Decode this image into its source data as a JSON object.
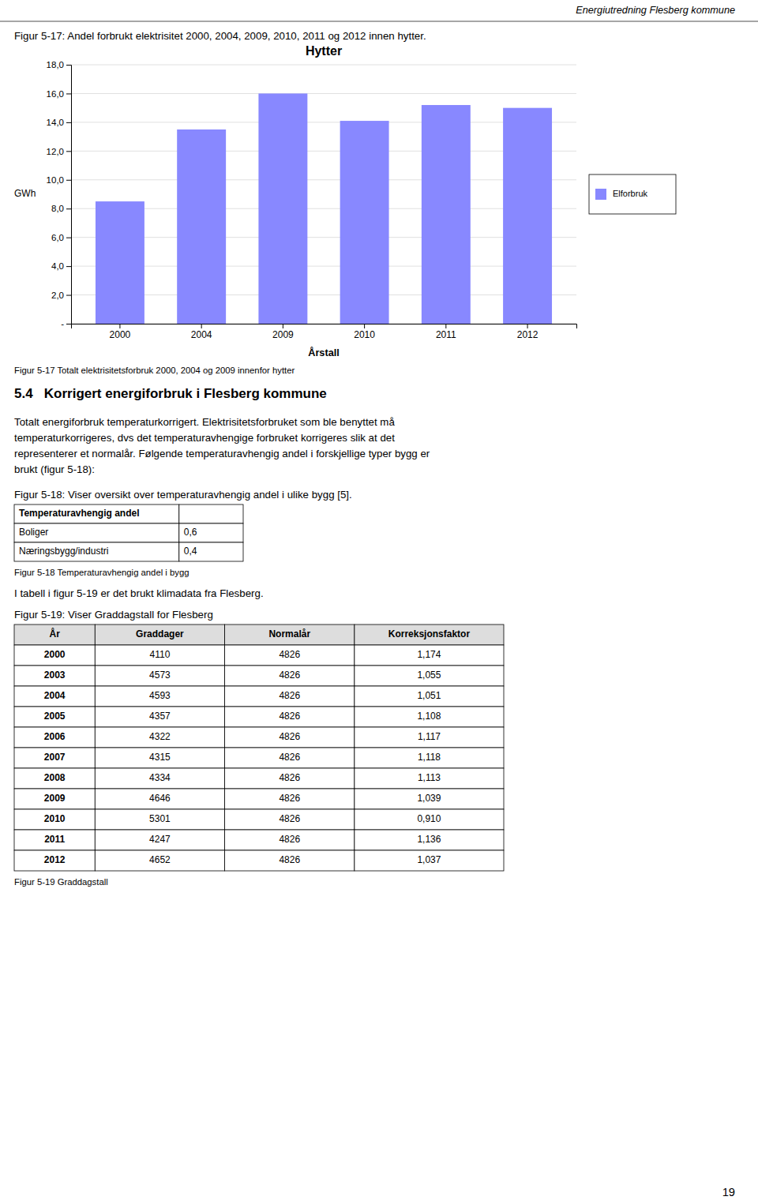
{
  "page_header": "Energiutredning Flesberg kommune",
  "page_number": "19",
  "fig517_title": "Figur 5-17: Andel forbrukt elektrisitet 2000, 2004, 2009, 2010, 2011 og 2012 innen hytter.",
  "chart_data": {
    "type": "bar",
    "title": "Hytter",
    "x_label": "Årstall",
    "y_label": "GWh",
    "categories": [
      "2000",
      "2004",
      "2009",
      "2010",
      "2011",
      "2012"
    ],
    "series": [
      {
        "name": "Elforbruk",
        "color": "#8888FF",
        "values": [
          8.5,
          13.5,
          16.0,
          14.1,
          15.2,
          15.0
        ]
      }
    ],
    "ylim": [
      0,
      18.0
    ],
    "yticks": [
      {
        "value": 0,
        "label": "-"
      },
      {
        "value": 2,
        "label": "2,0"
      },
      {
        "value": 4,
        "label": "4,0"
      },
      {
        "value": 6,
        "label": "6,0"
      },
      {
        "value": 8,
        "label": "8,0"
      },
      {
        "value": 10,
        "label": "10,0"
      },
      {
        "value": 12,
        "label": "12,0"
      },
      {
        "value": 14,
        "label": "14,0"
      },
      {
        "value": 16,
        "label": "16,0"
      },
      {
        "value": 18,
        "label": "18,0"
      }
    ],
    "grid": true,
    "legend": "right"
  },
  "fig517_caption": "Figur 5-17 Totalt elektrisitetsforbruk 2000, 2004 og 2009 innenfor hytter",
  "section_header": "5.4   Korrigert energiforbruk i Flesberg kommune",
  "section_text": [
    "Totalt energiforbruk temperaturkorrigert. Elektrisitetsforbruket som ble benyttet må",
    "temperaturkorrigeres, dvs det temperaturavhengige forbruket korrigeres slik at det",
    "representerer et normalår. Følgende temperaturavhengig andel i forskjellige typer bygg er",
    "brukt (figur 5-18):"
  ],
  "fig518_title": "Figur 5-18: Viser oversikt over temperaturavhengig andel i ulike bygg [5].",
  "table518": {
    "headers": [
      "Temperaturavhengig andel",
      null
    ],
    "rows": [
      [
        "Boliger",
        "0,6"
      ],
      [
        "Næringsbygg/industri",
        "0,4"
      ]
    ]
  },
  "fig518_caption": "Figur 5-18 Temperaturavhengig andel i bygg",
  "para519": "I tabell i figur 5-19 er det brukt klimadata fra Flesberg.",
  "fig519_title": "Figur 5-19: Viser Graddagstall for Flesberg",
  "table519": {
    "headers": [
      "År",
      "Graddager",
      "Normalår",
      "Korreksjonsfaktor"
    ],
    "rows": [
      [
        "2000",
        "4110",
        "4826",
        "1,174"
      ],
      [
        "2003",
        "4573",
        "4826",
        "1,055"
      ],
      [
        "2004",
        "4593",
        "4826",
        "1,051"
      ],
      [
        "2005",
        "4357",
        "4826",
        "1,108"
      ],
      [
        "2006",
        "4322",
        "4826",
        "1,117"
      ],
      [
        "2007",
        "4315",
        "4826",
        "1,118"
      ],
      [
        "2008",
        "4334",
        "4826",
        "1,113"
      ],
      [
        "2009",
        "4646",
        "4826",
        "1,039"
      ],
      [
        "2010",
        "5301",
        "4826",
        "0,910"
      ],
      [
        "2011",
        "4247",
        "4826",
        "1,136"
      ],
      [
        "2012",
        "4652",
        "4826",
        "1,037"
      ]
    ]
  },
  "fig519_caption": "Figur 5-19 Graddagstall"
}
